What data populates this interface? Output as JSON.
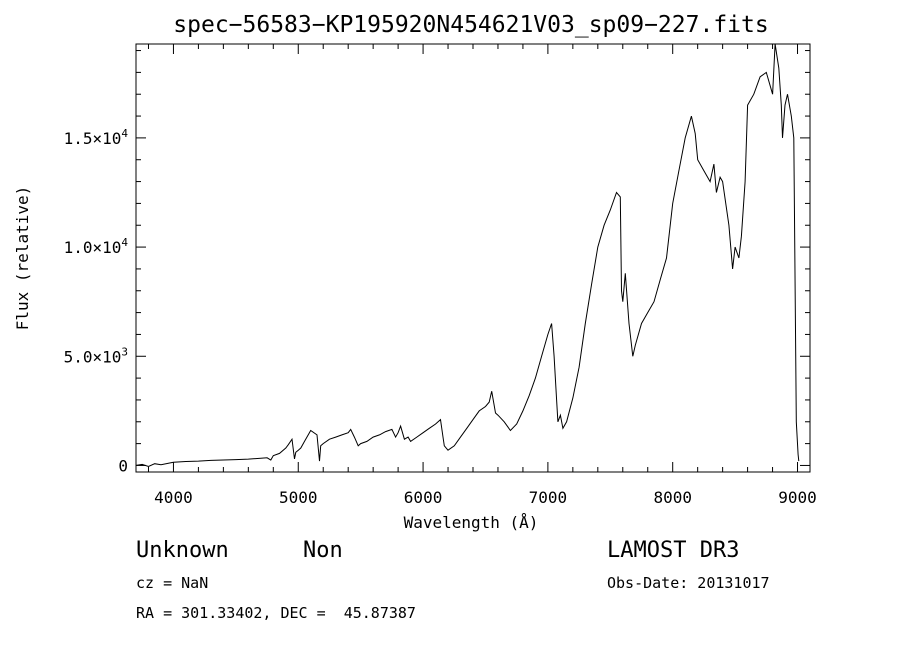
{
  "chart_data": {
    "type": "line",
    "title": "spec−56583−KP195920N454621V03_sp09−227.fits",
    "xlabel": "Wavelength (Å)",
    "ylabel": "Flux (relative)",
    "xlim": [
      3700,
      9100
    ],
    "ylim": [
      -300,
      19300
    ],
    "xticks": [
      {
        "value": 4000,
        "label": "4000"
      },
      {
        "value": 5000,
        "label": "5000"
      },
      {
        "value": 6000,
        "label": "6000"
      },
      {
        "value": 7000,
        "label": "7000"
      },
      {
        "value": 8000,
        "label": "8000"
      },
      {
        "value": 9000,
        "label": "9000"
      }
    ],
    "yticks": [
      {
        "value": 0,
        "label": "0"
      },
      {
        "value": 5000,
        "label": "5.0×10",
        "exp": "3"
      },
      {
        "value": 10000,
        "label": "1.0×10",
        "exp": "4"
      },
      {
        "value": 15000,
        "label": "1.5×10",
        "exp": "4"
      }
    ],
    "series": [
      {
        "name": "flux",
        "x": [
          3700,
          3750,
          3800,
          3850,
          3900,
          3950,
          4000,
          4100,
          4200,
          4300,
          4400,
          4500,
          4600,
          4700,
          4750,
          4780,
          4800,
          4850,
          4900,
          4920,
          4950,
          4970,
          4980,
          5000,
          5020,
          5050,
          5080,
          5100,
          5150,
          5170,
          5180,
          5200,
          5250,
          5300,
          5350,
          5400,
          5420,
          5450,
          5480,
          5500,
          5550,
          5600,
          5650,
          5700,
          5750,
          5780,
          5800,
          5820,
          5850,
          5880,
          5900,
          5950,
          6000,
          6050,
          6100,
          6140,
          6160,
          6170,
          6200,
          6250,
          6300,
          6350,
          6400,
          6450,
          6500,
          6530,
          6550,
          6580,
          6600,
          6650,
          6700,
          6750,
          6800,
          6850,
          6900,
          6950,
          7000,
          7030,
          7050,
          7070,
          7080,
          7100,
          7120,
          7150,
          7200,
          7250,
          7300,
          7350,
          7400,
          7450,
          7500,
          7550,
          7580,
          7590,
          7600,
          7620,
          7650,
          7680,
          7700,
          7750,
          7800,
          7850,
          7900,
          7950,
          8000,
          8050,
          8100,
          8150,
          8180,
          8200,
          8250,
          8300,
          8330,
          8350,
          8380,
          8400,
          8450,
          8480,
          8500,
          8530,
          8550,
          8580,
          8600,
          8650,
          8700,
          8750,
          8800,
          8820,
          8850,
          8870,
          8880,
          8900,
          8920,
          8950,
          8970,
          8990,
          9000,
          9005,
          9010
        ],
        "values": [
          0,
          50,
          -50,
          80,
          30,
          90,
          150,
          180,
          200,
          230,
          250,
          270,
          290,
          330,
          350,
          250,
          450,
          550,
          800,
          950,
          1200,
          300,
          600,
          700,
          800,
          1100,
          1400,
          1600,
          1400,
          200,
          900,
          1000,
          1200,
          1300,
          1400,
          1500,
          1650,
          1300,
          900,
          1000,
          1100,
          1300,
          1400,
          1550,
          1650,
          1300,
          1500,
          1800,
          1200,
          1300,
          1100,
          1300,
          1500,
          1700,
          1900,
          2100,
          1300,
          900,
          700,
          900,
          1300,
          1700,
          2100,
          2500,
          2700,
          2900,
          3400,
          2400,
          2300,
          2000,
          1600,
          1900,
          2500,
          3200,
          4000,
          5000,
          6000,
          6500,
          5000,
          3000,
          2000,
          2300,
          1700,
          2000,
          3100,
          4500,
          6500,
          8300,
          10000,
          11000,
          11700,
          12500,
          12300,
          8000,
          7500,
          8800,
          6500,
          5000,
          5500,
          6500,
          7000,
          7500,
          8500,
          9500,
          12000,
          13500,
          15000,
          16000,
          15200,
          14000,
          13500,
          13000,
          13800,
          12500,
          13200,
          13000,
          11000,
          9000,
          10000,
          9500,
          10500,
          13000,
          16500,
          17000,
          17800,
          18000,
          17000,
          19300,
          18200,
          16500,
          15000,
          16500,
          17000,
          16000,
          15000,
          2000,
          1000,
          500,
          200
        ]
      }
    ]
  },
  "info": {
    "class_label": "Unknown",
    "subclass_label": "Non",
    "survey_label": "LAMOST DR3",
    "cz_text": "cz = NaN",
    "obs_date_text": "Obs-Date: 20131017",
    "radec_text": "RA = 301.33402, DEC =  45.87387"
  }
}
